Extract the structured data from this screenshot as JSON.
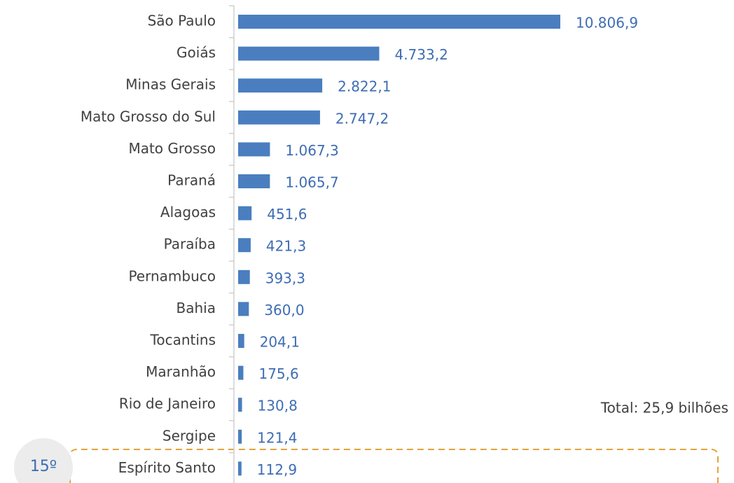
{
  "chart_data": {
    "type": "bar",
    "orientation": "horizontal",
    "color": "#4a7ebf",
    "categories": [
      "São Paulo",
      "Goiás",
      "Minas Gerais",
      "Mato Grosso do Sul",
      "Mato Grosso",
      "Paraná",
      "Alagoas",
      "Paraíba",
      "Pernambuco",
      "Bahia",
      "Tocantins",
      "Maranhão",
      "Rio de Janeiro",
      "Sergipe",
      "Espírito Santo"
    ],
    "values": [
      10806.9,
      4733.2,
      2822.1,
      2747.2,
      1067.3,
      1065.7,
      451.6,
      421.3,
      393.3,
      360.0,
      204.1,
      175.6,
      130.8,
      121.4,
      112.9
    ],
    "value_labels": [
      "10.806,9",
      "4.733,2",
      "2.822,1",
      "2.747,2",
      "1.067,3",
      "1.065,7",
      "451,6",
      "421,3",
      "393,3",
      "360,0",
      "204,1",
      "175,6",
      "130,8",
      "121,4",
      "112,9"
    ],
    "annotations": [
      "Total: 25,9 bilhões",
      "15º"
    ]
  }
}
